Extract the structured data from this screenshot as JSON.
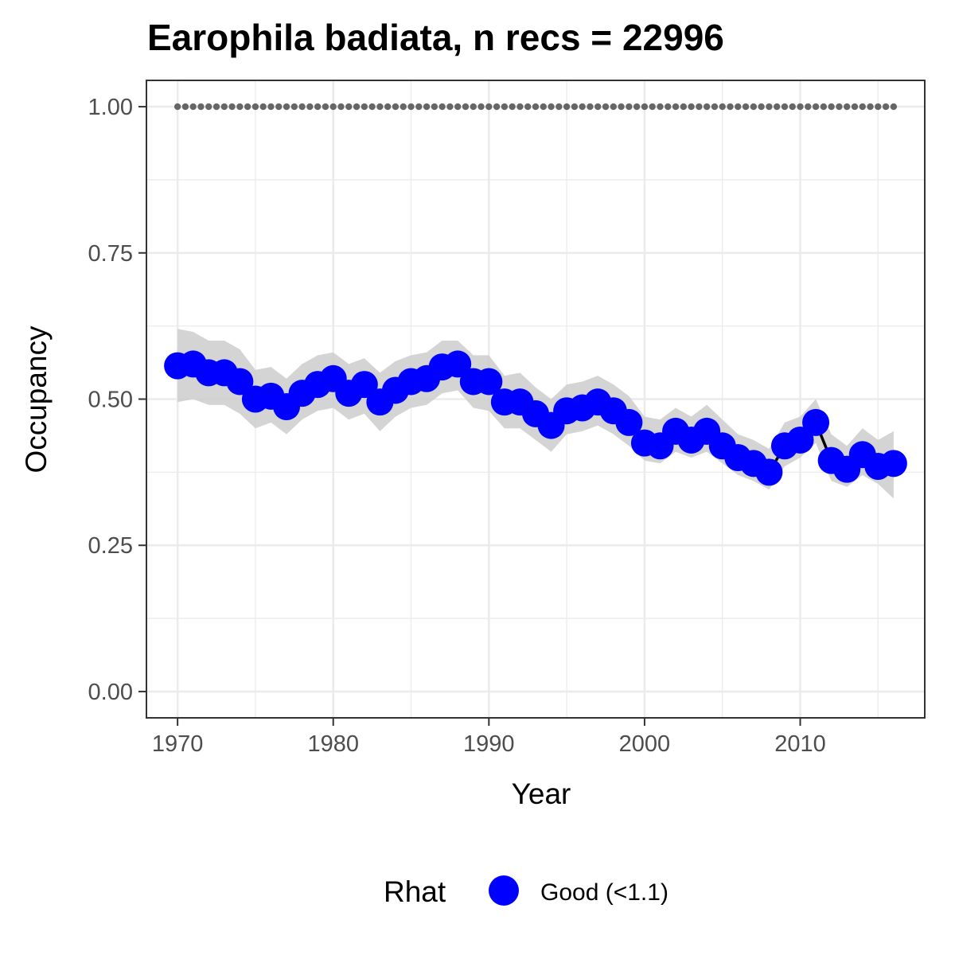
{
  "chart_data": {
    "type": "line",
    "title": "Earophila badiata, n recs = 22996",
    "xlabel": "Year",
    "ylabel": "Occupancy",
    "xlim": [
      1968,
      2018
    ],
    "ylim": [
      -0.045,
      1.045
    ],
    "x_ticks": [
      1970,
      1980,
      1990,
      2000,
      2010
    ],
    "x_tick_labels": [
      "1970",
      "1980",
      "1990",
      "2000",
      "2010"
    ],
    "y_ticks": [
      0,
      0.25,
      0.5,
      0.75,
      1.0
    ],
    "y_tick_labels": [
      "0.00",
      "0.25",
      "0.50",
      "0.75",
      "1.00"
    ],
    "grid": true,
    "legend": {
      "title": "Rhat",
      "position": "bottom",
      "entries": [
        {
          "label": "Good (<1.1)",
          "color": "#0000ff"
        }
      ]
    },
    "colors": {
      "points": "#0000ff",
      "line": "#000000",
      "ribbon": "#cccccc",
      "reference_dots": "#666666",
      "grid": "#ebebeb",
      "panel_border": "#333333"
    },
    "reference_line": {
      "y": 1.0,
      "style": "dotted"
    },
    "series": [
      {
        "name": "Good (<1.1)",
        "x": [
          1970,
          1971,
          1972,
          1973,
          1974,
          1975,
          1976,
          1977,
          1978,
          1979,
          1980,
          1981,
          1982,
          1983,
          1984,
          1985,
          1986,
          1987,
          1988,
          1989,
          1990,
          1991,
          1992,
          1993,
          1994,
          1995,
          1996,
          1997,
          1998,
          1999,
          2000,
          2001,
          2002,
          2003,
          2004,
          2005,
          2006,
          2007,
          2008,
          2009,
          2010,
          2011,
          2012,
          2013,
          2014,
          2015,
          2016
        ],
        "y": [
          0.557,
          0.56,
          0.545,
          0.545,
          0.53,
          0.5,
          0.505,
          0.487,
          0.51,
          0.525,
          0.535,
          0.51,
          0.525,
          0.495,
          0.515,
          0.53,
          0.535,
          0.555,
          0.56,
          0.53,
          0.53,
          0.495,
          0.495,
          0.475,
          0.455,
          0.48,
          0.485,
          0.495,
          0.48,
          0.46,
          0.425,
          0.42,
          0.445,
          0.43,
          0.445,
          0.42,
          0.4,
          0.39,
          0.375,
          0.42,
          0.43,
          0.46,
          0.395,
          0.38,
          0.405,
          0.385,
          0.39
        ],
        "lower": [
          0.495,
          0.5,
          0.49,
          0.49,
          0.475,
          0.45,
          0.46,
          0.44,
          0.465,
          0.48,
          0.485,
          0.465,
          0.475,
          0.445,
          0.47,
          0.485,
          0.49,
          0.51,
          0.515,
          0.485,
          0.48,
          0.45,
          0.45,
          0.43,
          0.41,
          0.44,
          0.445,
          0.455,
          0.44,
          0.42,
          0.395,
          0.39,
          0.41,
          0.4,
          0.41,
          0.39,
          0.37,
          0.36,
          0.345,
          0.385,
          0.4,
          0.425,
          0.36,
          0.35,
          0.37,
          0.355,
          0.33
        ],
        "upper": [
          0.62,
          0.615,
          0.6,
          0.6,
          0.585,
          0.55,
          0.555,
          0.535,
          0.56,
          0.575,
          0.58,
          0.56,
          0.57,
          0.545,
          0.565,
          0.575,
          0.58,
          0.6,
          0.6,
          0.575,
          0.575,
          0.54,
          0.545,
          0.52,
          0.5,
          0.525,
          0.53,
          0.54,
          0.525,
          0.505,
          0.47,
          0.465,
          0.485,
          0.47,
          0.49,
          0.465,
          0.44,
          0.43,
          0.415,
          0.46,
          0.47,
          0.5,
          0.44,
          0.42,
          0.45,
          0.43,
          0.445
        ]
      }
    ]
  }
}
